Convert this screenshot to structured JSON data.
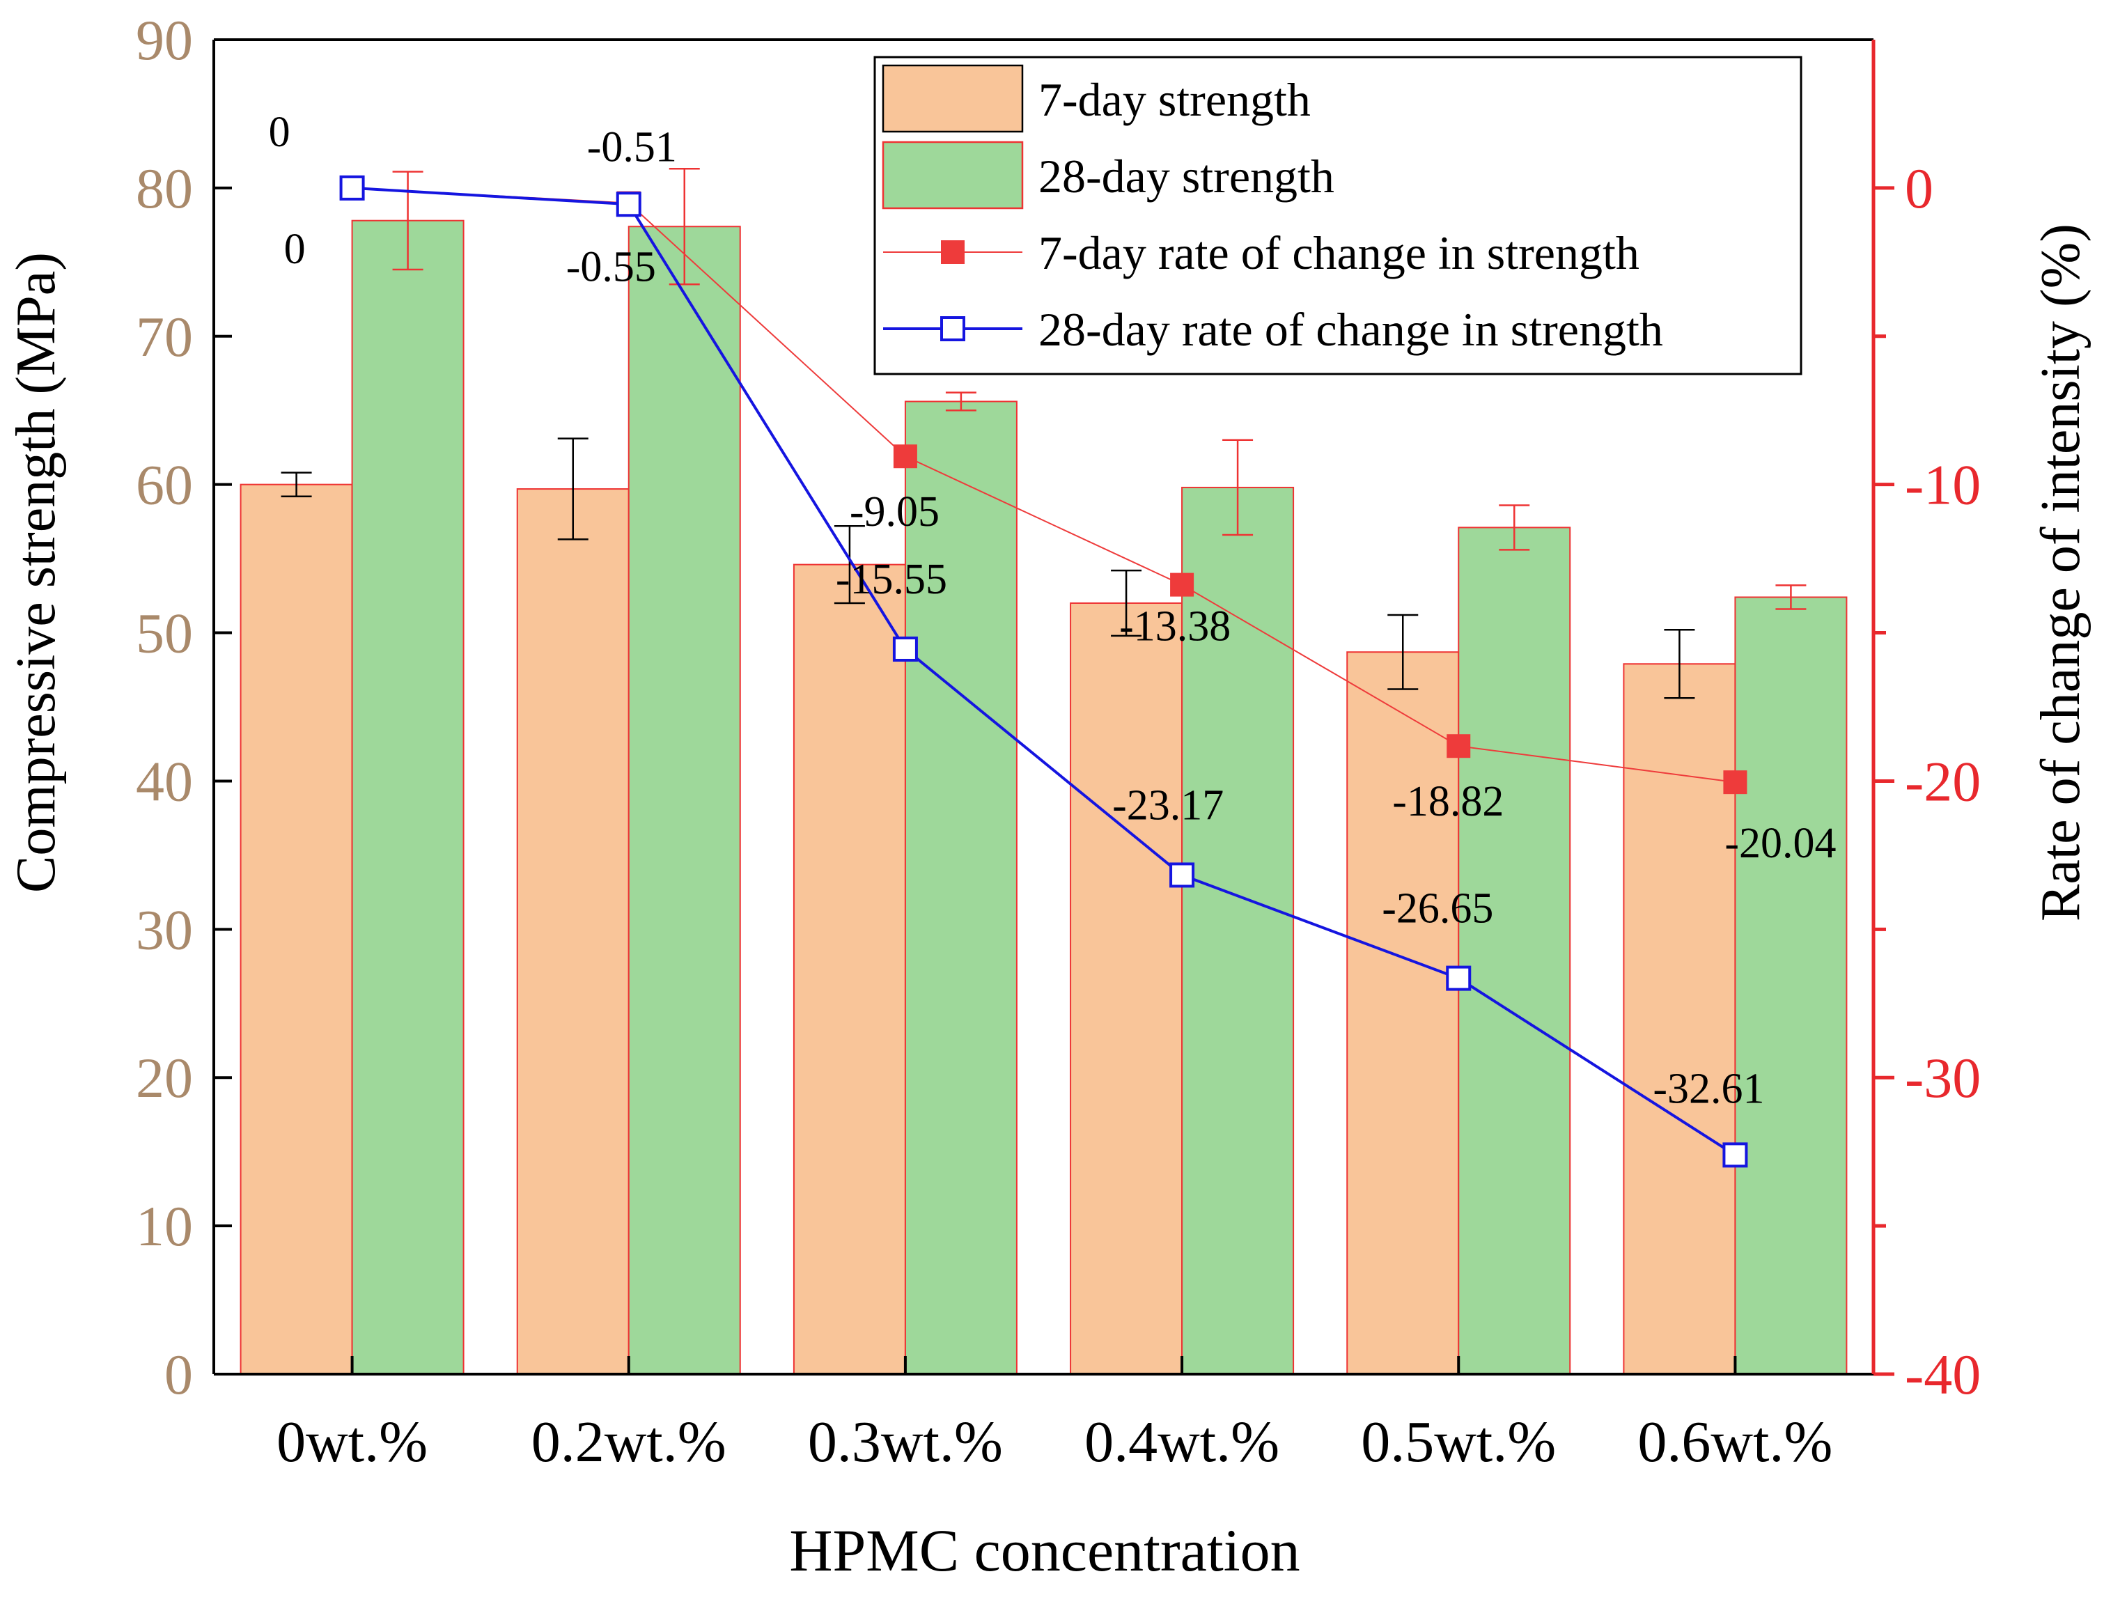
{
  "chart_data": {
    "type": "bar",
    "xlabel": "HPMC concentration",
    "ylabel_left": "Compressive strength (MPa)",
    "ylabel_right": "Rate of change of intensity (%)",
    "categories": [
      "0wt.%",
      "0.2wt.%",
      "0.3wt.%",
      "0.4wt.%",
      "0.5wt.%",
      "0.6wt.%"
    ],
    "ylim_left": [
      0,
      90
    ],
    "yticks_left": [
      "0",
      "10",
      "20",
      "30",
      "40",
      "50",
      "60",
      "70",
      "80",
      "90"
    ],
    "ylim_right": [
      -40,
      5
    ],
    "yticks_right": [
      "0",
      "-10",
      "-20",
      "-30",
      "-40"
    ],
    "bar_series": [
      {
        "name": "7-day strength",
        "values": [
          60.0,
          59.7,
          54.6,
          52.0,
          48.7,
          47.9
        ],
        "errors": [
          0.8,
          3.4,
          2.6,
          2.2,
          2.5,
          2.3
        ],
        "color": "#f9c599"
      },
      {
        "name": "28-day strength",
        "values": [
          77.8,
          77.4,
          65.6,
          59.8,
          57.1,
          52.4
        ],
        "errors": [
          3.3,
          3.9,
          0.6,
          3.2,
          1.5,
          0.8
        ],
        "color": "#9ed89a"
      }
    ],
    "line_series": [
      {
        "name": "7-day rate of change in strength",
        "values": [
          0,
          -0.51,
          -9.05,
          -13.38,
          -18.82,
          -20.04
        ],
        "labels": [
          "0",
          "-0.51",
          "-9.05",
          "-13.38",
          "-18.82",
          "-20.04"
        ],
        "color": "#ee3b3b",
        "marker": "filled-square"
      },
      {
        "name": "28-day rate of change in strength",
        "values": [
          0,
          -0.55,
          -15.55,
          -23.17,
          -26.65,
          -32.61
        ],
        "labels": [
          "0",
          "-0.55",
          "-15.55",
          "-23.17",
          "-26.65",
          "-32.61"
        ],
        "color": "#1515e0",
        "marker": "open-square"
      }
    ],
    "axis_colors": {
      "left": "#a9896a",
      "right": "#e8282d",
      "frame": "#000000"
    }
  }
}
